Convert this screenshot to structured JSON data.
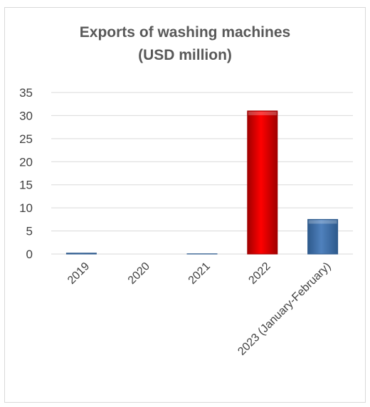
{
  "chart_data": {
    "type": "bar",
    "title_line1": "Exports of washing machines",
    "title_line2": "(USD million)",
    "xlabel": "",
    "ylabel": "",
    "categories": [
      "2019",
      "2020",
      "2021",
      "2022",
      "2023 (January-February)"
    ],
    "values": [
      0.2,
      0,
      0.05,
      31,
      7.5
    ],
    "yticks": [
      0,
      5,
      10,
      15,
      20,
      25,
      30,
      35
    ],
    "ylim": [
      0,
      35
    ],
    "grid": true,
    "bar_colors": [
      "#4f81bd",
      "#4f81bd",
      "#4f81bd",
      "#ff0000",
      "#4f81bd"
    ],
    "bar_dark": [
      "#2e5a8c",
      "#2e5a8c",
      "#2e5a8c",
      "#a00000",
      "#2e5a8c"
    ]
  }
}
